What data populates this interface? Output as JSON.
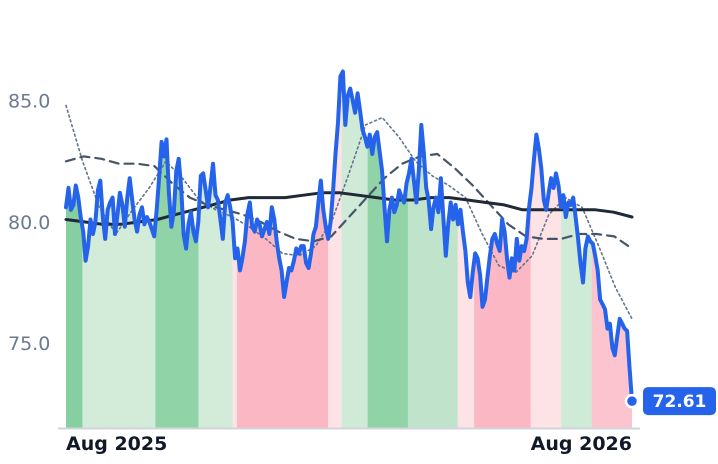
{
  "chart_data": {
    "type": "line",
    "title": "",
    "xlabel": "",
    "ylabel": "",
    "x_tick_labels": [
      "Aug 2025",
      "Aug 2026"
    ],
    "y_ticks": [
      75.0,
      80.0,
      85.0
    ],
    "y_tick_labels": [
      "75.0",
      "80.0",
      "85.0"
    ],
    "ylim": [
      71.5,
      87.5
    ],
    "grid": false,
    "last_value_label": "72.61",
    "series": [
      {
        "role": "price",
        "color": "#2563eb",
        "values": [
          80.6,
          81.4,
          80.5,
          80.7,
          81.5,
          81.0,
          80.2,
          79.6,
          78.4,
          79.0,
          80.1,
          79.5,
          80.0,
          81.3,
          81.7,
          80.2,
          79.3,
          80.5,
          80.8,
          81.0,
          79.5,
          80.3,
          81.2,
          80.7,
          79.8,
          81.0,
          81.8,
          80.9,
          80.1,
          79.6,
          80.3,
          80.6,
          79.9,
          80.2,
          80.0,
          79.7,
          79.4,
          80.5,
          81.8,
          83.3,
          82.7,
          83.4,
          81.2,
          79.8,
          80.4,
          82.1,
          82.6,
          81.4,
          79.5,
          78.9,
          79.9,
          80.4,
          79.6,
          79.2,
          80.0,
          81.9,
          82.0,
          81.3,
          80.6,
          81.5,
          82.4,
          81.1,
          80.9,
          80.1,
          79.3,
          80.8,
          81.1,
          80.6,
          80.0,
          78.5,
          78.9,
          78.0,
          78.5,
          79.2,
          80.3,
          80.8,
          79.8,
          79.6,
          80.1,
          79.9,
          79.4,
          79.7,
          80.0,
          79.5,
          80.6,
          80.1,
          79.2,
          78.5,
          78.0,
          76.9,
          77.5,
          78.1,
          78.0,
          78.4,
          78.9,
          78.7,
          79.0,
          79.0,
          78.3,
          78.1,
          78.7,
          79.5,
          79.8,
          80.8,
          81.7,
          80.5,
          79.8,
          79.3,
          80.0,
          81.3,
          82.8,
          84.1,
          86.0,
          86.2,
          84.0,
          85.2,
          85.5,
          85.0,
          84.5,
          85.3,
          84.6,
          83.8,
          83.5,
          83.1,
          83.6,
          82.8,
          83.5,
          83.7,
          82.9,
          82.1,
          80.6,
          79.2,
          80.5,
          81.0,
          80.4,
          80.7,
          81.3,
          81.0,
          80.8,
          81.6,
          82.0,
          82.6,
          81.7,
          80.8,
          82.1,
          84.0,
          82.9,
          81.4,
          80.9,
          79.7,
          80.6,
          81.0,
          80.4,
          81.8,
          80.2,
          78.6,
          79.9,
          80.8,
          80.1,
          80.7,
          79.9,
          80.5,
          79.6,
          78.8,
          77.5,
          76.9,
          77.9,
          78.7,
          78.5,
          77.8,
          76.5,
          76.8,
          77.7,
          78.6,
          79.3,
          79.5,
          79.1,
          78.8,
          80.1,
          79.6,
          78.5,
          77.7,
          78.5,
          78.0,
          79.3,
          78.4,
          79.0,
          78.8,
          79.3,
          80.6,
          81.4,
          82.6,
          83.6,
          83.0,
          82.2,
          80.9,
          80.5,
          81.2,
          81.8,
          81.4,
          82.0,
          81.5,
          80.6,
          81.1,
          80.2,
          80.8,
          80.7,
          81.0,
          80.2,
          79.3,
          78.3,
          77.5,
          78.9,
          79.4,
          79.2,
          79.1,
          78.6,
          78.0,
          76.8,
          76.6,
          76.4,
          75.6,
          75.8,
          74.8,
          74.5,
          75.3,
          76.0,
          75.8,
          75.6,
          75.5,
          74.0,
          72.61
        ],
        "line_width": 4
      },
      {
        "role": "ma-long",
        "color": "#1f2937",
        "values": [
          80.1,
          80.0,
          79.9,
          79.9,
          80.0,
          80.1,
          80.3,
          80.5,
          80.7,
          80.9,
          81.0,
          81.0,
          81.0,
          81.1,
          81.2,
          81.2,
          81.1,
          81.0,
          80.9,
          80.9,
          81.0,
          81.0,
          80.9,
          80.8,
          80.7,
          80.5,
          80.5,
          80.5,
          80.5,
          80.5,
          80.4,
          80.2
        ],
        "line_width": 3
      },
      {
        "role": "ma-mid",
        "color": "#475569",
        "values": [
          82.5,
          82.7,
          82.6,
          82.4,
          82.4,
          82.3,
          81.6,
          81.0,
          80.7,
          80.5,
          80.3,
          80.0,
          79.6,
          79.3,
          79.2,
          79.4,
          80.2,
          81.0,
          81.8,
          82.4,
          82.7,
          82.8,
          82.2,
          81.5,
          80.7,
          79.9,
          79.4,
          79.3,
          79.3,
          79.5,
          79.5,
          79.4,
          78.9
        ],
        "line_width": 2.2,
        "dashed": true
      },
      {
        "role": "ma-short",
        "color": "#64748b",
        "values": [
          84.8,
          82.5,
          80.6,
          79.5,
          80.5,
          81.4,
          82.5,
          81.8,
          80.9,
          80.5,
          80.2,
          79.8,
          79.3,
          78.7,
          78.6,
          79.0,
          80.1,
          82.0,
          84.0,
          84.3,
          83.5,
          82.5,
          81.9,
          81.5,
          81.0,
          79.5,
          78.2,
          77.9,
          78.6,
          80.3,
          81.0,
          80.6,
          79.0,
          77.3,
          76.0
        ],
        "line_width": 1.6,
        "dotted": true
      }
    ],
    "regime_bands": [
      {
        "from": 0,
        "to": 0.029,
        "color": "#86cfa0"
      },
      {
        "from": 0.029,
        "to": 0.158,
        "color": "#d3ebd9"
      },
      {
        "from": 0.158,
        "to": 0.234,
        "color": "#8fd3a6"
      },
      {
        "from": 0.234,
        "to": 0.294,
        "color": "#d3ebd9"
      },
      {
        "from": 0.294,
        "to": 0.302,
        "color": "#fde2e6"
      },
      {
        "from": 0.302,
        "to": 0.463,
        "color": "#fbb8c4"
      },
      {
        "from": 0.463,
        "to": 0.487,
        "color": "#fde2e6"
      },
      {
        "from": 0.487,
        "to": 0.533,
        "color": "#cfead7"
      },
      {
        "from": 0.533,
        "to": 0.604,
        "color": "#8fd3a6"
      },
      {
        "from": 0.604,
        "to": 0.692,
        "color": "#bfe4cb"
      },
      {
        "from": 0.692,
        "to": 0.721,
        "color": "#fde2e6"
      },
      {
        "from": 0.721,
        "to": 0.821,
        "color": "#fbb8c4"
      },
      {
        "from": 0.821,
        "to": 0.875,
        "color": "#fde2e6"
      },
      {
        "from": 0.875,
        "to": 0.929,
        "color": "#cfead7"
      },
      {
        "from": 0.929,
        "to": 1.0,
        "color": "#fbc4cf"
      }
    ]
  },
  "colors": {
    "axis": "#d1d5db",
    "ytick": "#6b7a90",
    "xtick": "#111827",
    "badge": "#2563eb"
  }
}
